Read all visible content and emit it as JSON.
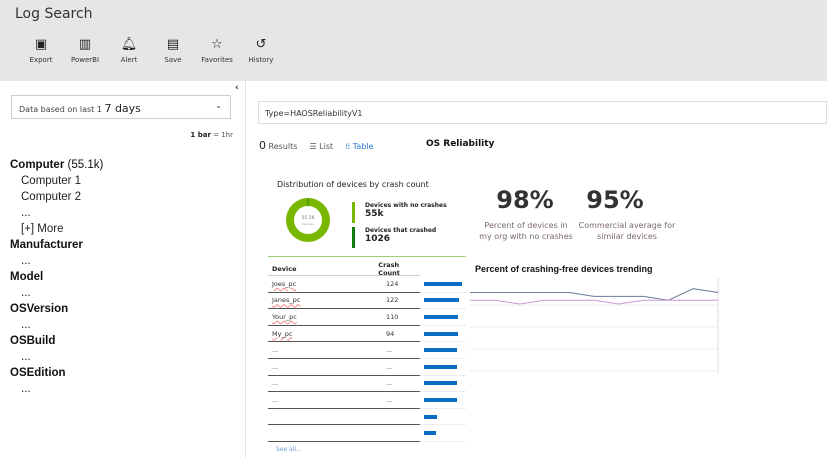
{
  "app": {
    "title": "Log Search"
  },
  "toolbar": [
    {
      "label": "Export",
      "icon": "excel-icon"
    },
    {
      "label": "PowerBI",
      "icon": "powerbi-icon"
    },
    {
      "label": "Alert",
      "icon": "bell-icon"
    },
    {
      "label": "Save",
      "icon": "save-icon"
    },
    {
      "label": "Favorites",
      "icon": "star-icon"
    },
    {
      "label": "History",
      "icon": "history-icon"
    }
  ],
  "left": {
    "range_prefix": "Data based on last 1",
    "range_value": "7 days",
    "bar_bold": "1 bar",
    "bar_rest": " = 1hr",
    "facets": [
      {
        "name": "Computer",
        "count": "(55.1k)",
        "items": [
          "Computer 1",
          "Computer 2",
          "...",
          "[+] More"
        ]
      },
      {
        "name": "Manufacturer",
        "items": [
          "..."
        ]
      },
      {
        "name": "Model",
        "items": [
          "..."
        ]
      },
      {
        "name": "OSVersion",
        "items": [
          "..."
        ]
      },
      {
        "name": "OSBuild",
        "items": [
          "..."
        ]
      },
      {
        "name": "OSEdition",
        "items": [
          "..."
        ]
      }
    ]
  },
  "query": {
    "value": "Type=HAOSReliabilityV1"
  },
  "results": {
    "count": "0",
    "label": "Results",
    "list": "List",
    "table": "Table",
    "title": "OS Reliability"
  },
  "distribution": {
    "title": "Distribution of devices by crash count",
    "donut_center": "55.1K",
    "donut_sub": "Devices",
    "legend": [
      {
        "label": "Devices with no crashes",
        "value": "55k",
        "color": "#7ab800"
      },
      {
        "label": "Devices that crashed",
        "value": "1026",
        "color": "#107c10"
      }
    ]
  },
  "kpis": [
    {
      "value": "98%",
      "caption_1": "Percent of devices in",
      "caption_2": "my org with no crashes"
    },
    {
      "value": "95%",
      "caption_1": "Commercial  average   for",
      "caption_2": "similar devices"
    }
  ],
  "crash_table": {
    "headers": [
      "Device",
      "Crash Count"
    ],
    "rows": [
      {
        "device": "Joes_pc",
        "count": "124",
        "bar": 1.0
      },
      {
        "device": "Janes_pc",
        "count": "122",
        "bar": 0.93
      },
      {
        "device": "Your_pc",
        "count": "110",
        "bar": 0.9
      },
      {
        "device": "My_pc",
        "count": "94",
        "bar": 0.9
      },
      {
        "device": "...",
        "count": "...",
        "bar": 0.88
      },
      {
        "device": "...",
        "count": "...",
        "bar": 0.87
      },
      {
        "device": "...",
        "count": "...",
        "bar": 0.87
      },
      {
        "device": "...",
        "count": "...",
        "bar": 0.86
      },
      {
        "device": "",
        "count": "",
        "bar": 0.35
      },
      {
        "device": "",
        "count": "",
        "bar": 0.32
      }
    ],
    "see_all": "See all..."
  },
  "chart_data": {
    "type": "line",
    "title": "Percent of crashing-free devices trending",
    "grid": true,
    "series": [
      {
        "color": "#6b7a99",
        "values": [
          98.2,
          98.2,
          98.2,
          98.2,
          98.2,
          98.1,
          98.1,
          98.1,
          98.0,
          98.3,
          98.2
        ]
      },
      {
        "color": "#c99ad0",
        "values": [
          98.0,
          98.0,
          97.9,
          98.0,
          98.0,
          98.0,
          97.9,
          98.0,
          98.0,
          98.0,
          98.0
        ]
      }
    ],
    "ylim": [
      97.0,
      98.5
    ]
  }
}
